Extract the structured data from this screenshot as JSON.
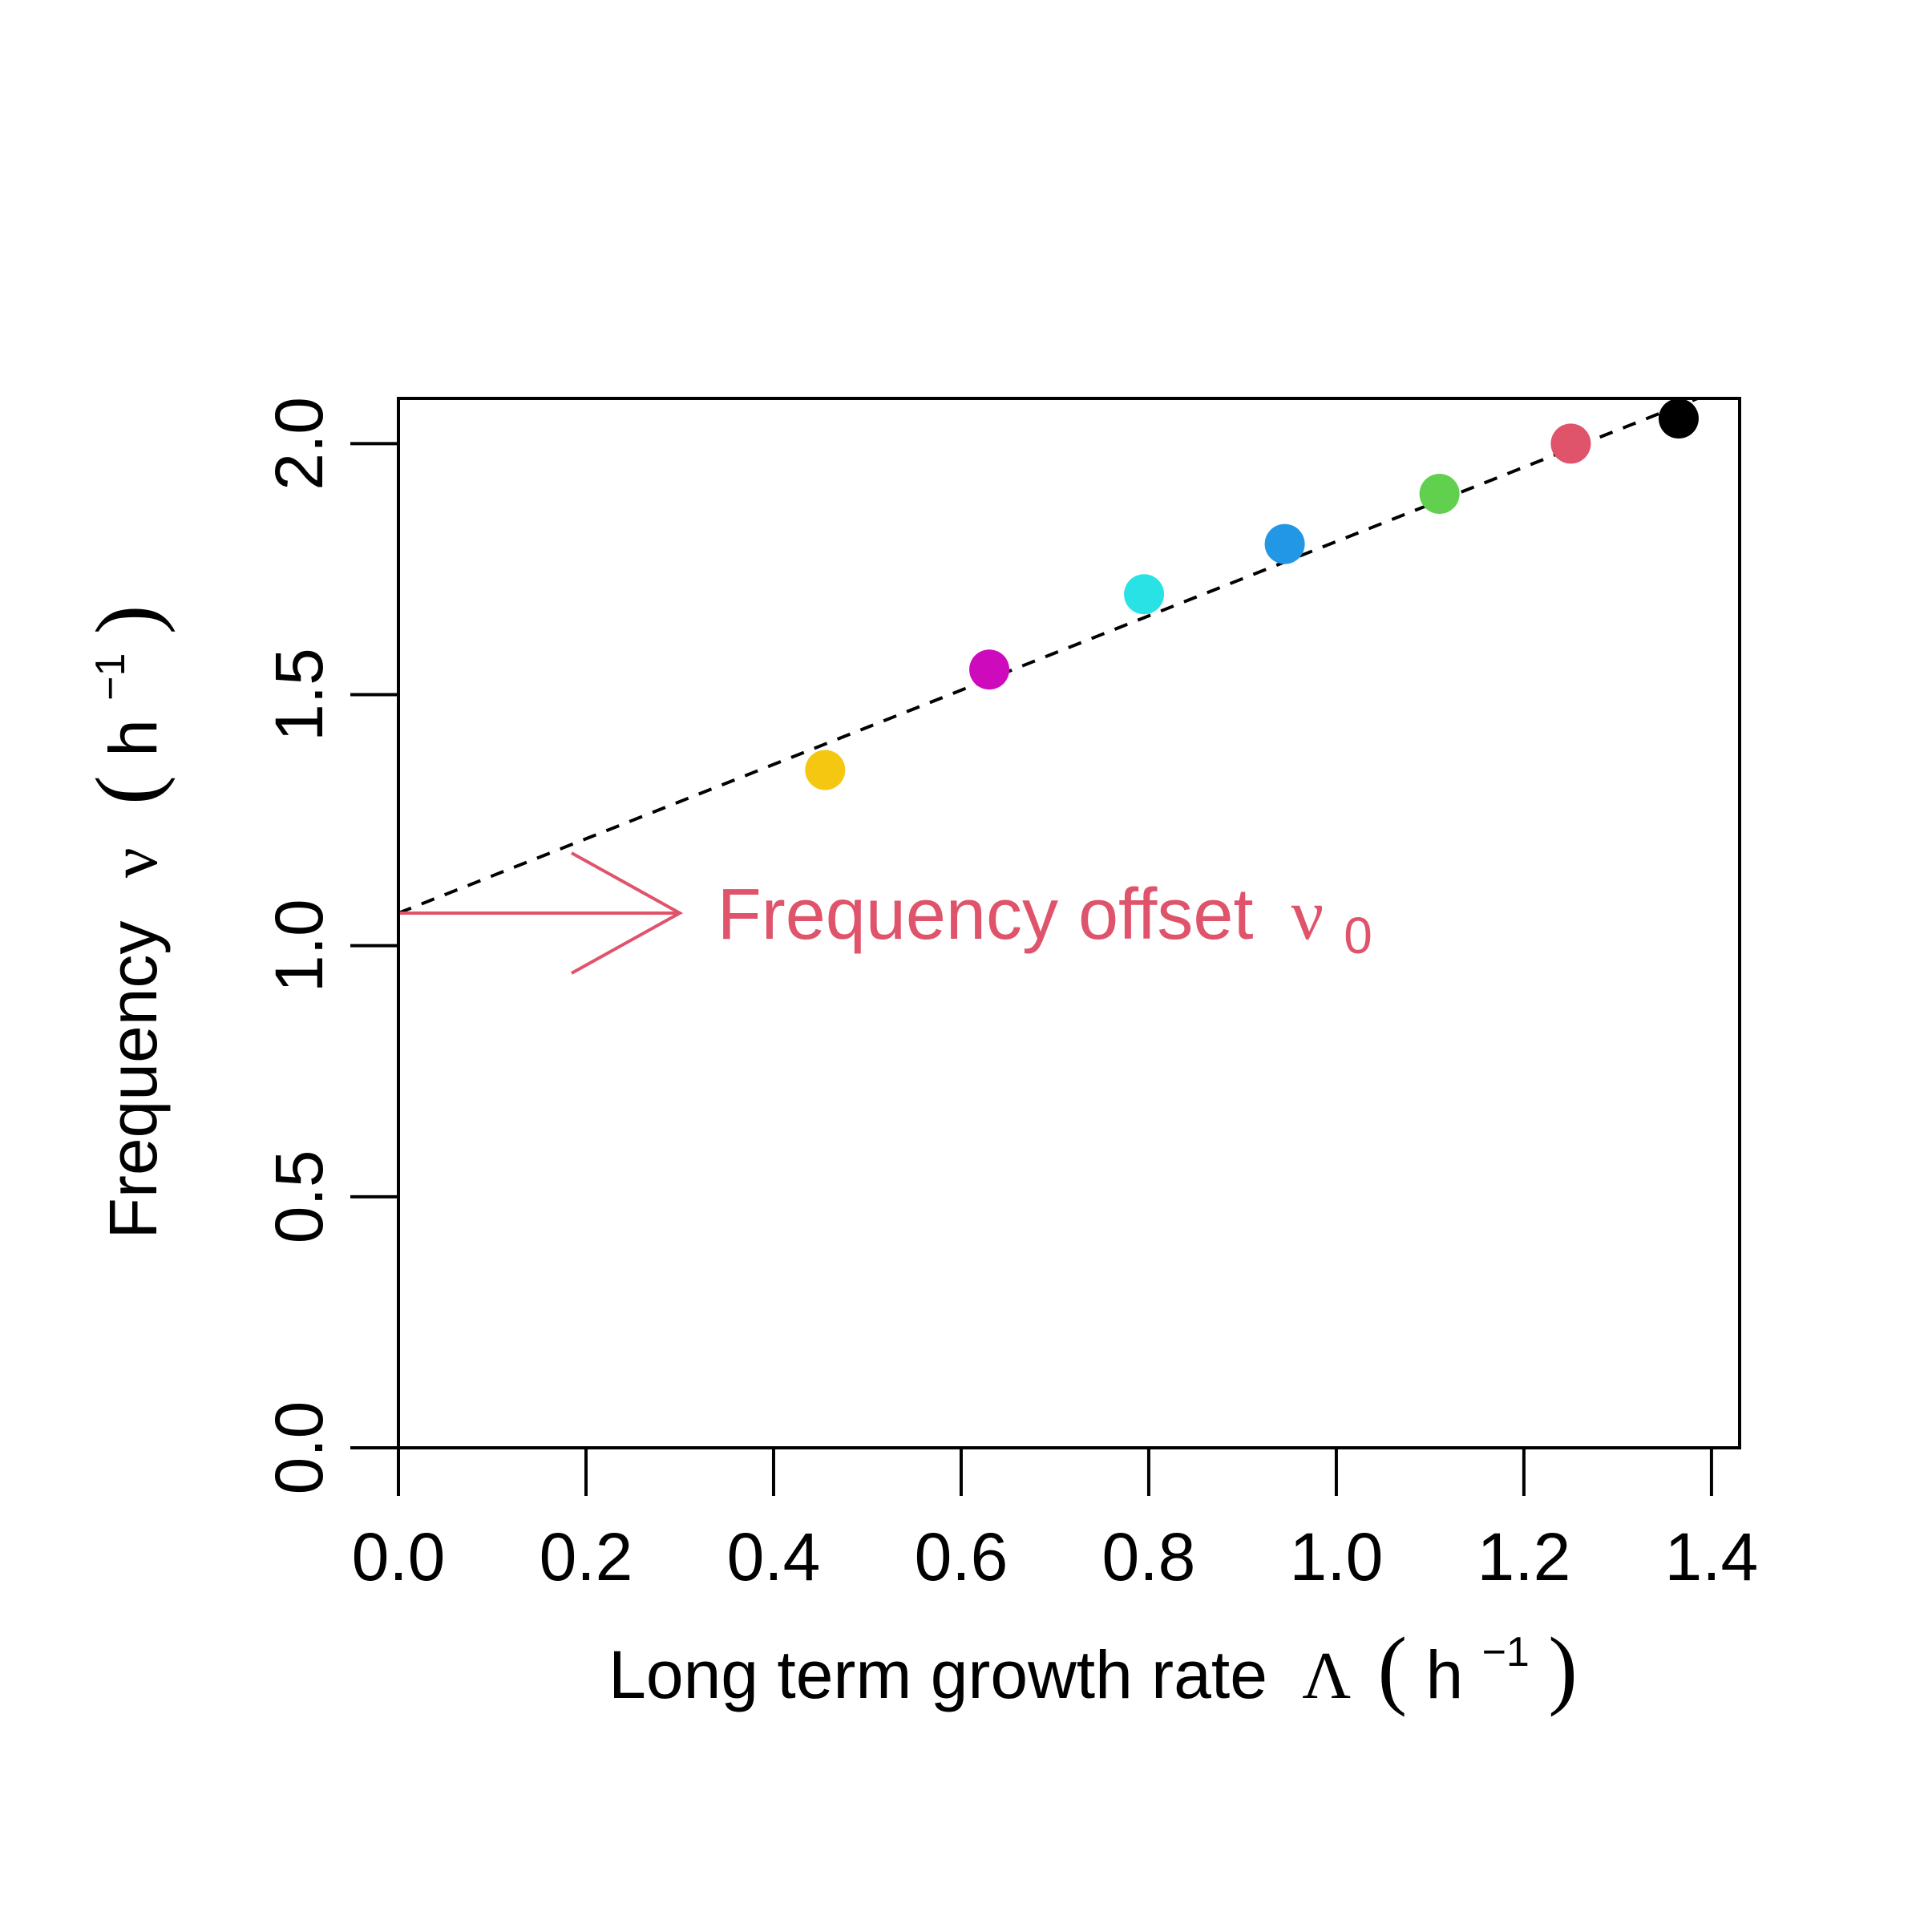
{
  "chart_data": {
    "type": "scatter",
    "xlabel": {
      "text": "Long term growth rate",
      "symbol": "Λ",
      "unit_open": "(",
      "unit_base": "h",
      "unit_exp": "−1",
      "unit_close": ")"
    },
    "ylabel": {
      "text": "Frequency",
      "symbol": "ν",
      "unit_open": "(",
      "unit_base": "h",
      "unit_exp": "−1",
      "unit_close": ")"
    },
    "xlim": [
      0.0,
      1.43
    ],
    "ylim": [
      0.0,
      2.09
    ],
    "x_ticks": [
      0.0,
      0.2,
      0.4,
      0.6,
      0.8,
      1.0,
      1.2,
      1.4
    ],
    "x_tick_labels": [
      "0.0",
      "0.2",
      "0.4",
      "0.6",
      "0.8",
      "1.0",
      "1.2",
      "1.4"
    ],
    "y_ticks": [
      0.0,
      0.5,
      1.0,
      1.5,
      2.0
    ],
    "y_tick_labels": [
      "0.0",
      "0.5",
      "1.0",
      "1.5",
      "2.0"
    ],
    "points": [
      {
        "x": 0.455,
        "y": 1.35,
        "color": "#F5C710"
      },
      {
        "x": 0.63,
        "y": 1.55,
        "color": "#CD0BBC"
      },
      {
        "x": 0.795,
        "y": 1.7,
        "color": "#28E2E5"
      },
      {
        "x": 0.945,
        "y": 1.8,
        "color": "#2297E6"
      },
      {
        "x": 1.11,
        "y": 1.9,
        "color": "#61D04F"
      },
      {
        "x": 1.25,
        "y": 2.0,
        "color": "#DF536B"
      },
      {
        "x": 1.365,
        "y": 2.05,
        "color": "#000000"
      }
    ],
    "fit_line": {
      "style": "dashed",
      "color": "#000000",
      "intercept": 1.065,
      "slope": 0.74
    },
    "annotation": {
      "text": "Frequency offset",
      "symbol": "ν",
      "subscript": "0",
      "color": "#DF536B",
      "arrow_from_x": 0.3,
      "arrow_to_x": 0.0,
      "arrow_y": 1.065,
      "text_x": 0.34
    },
    "grid": false,
    "legend": "none"
  }
}
